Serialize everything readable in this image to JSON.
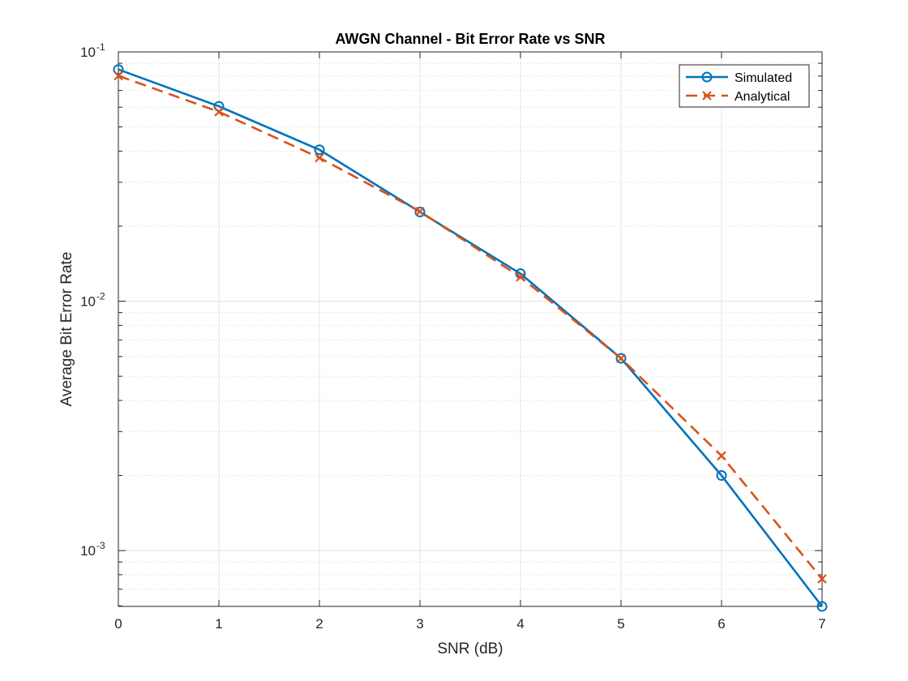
{
  "chart_data": {
    "type": "line",
    "title": "AWGN Channel - Bit Error Rate vs SNR",
    "xlabel": "SNR (dB)",
    "ylabel": "Average Bit Error Rate",
    "xlim": [
      0,
      7
    ],
    "ylim": [
      0.000597,
      0.1
    ],
    "yscale": "log",
    "grid": true,
    "legend_position": "top-right",
    "x": [
      0,
      1,
      2,
      3,
      4,
      5,
      6,
      7
    ],
    "xticks": [
      "0",
      "1",
      "2",
      "3",
      "4",
      "5",
      "6",
      "7"
    ],
    "yticks": [
      {
        "value": 0.001,
        "base": "10",
        "exp": "-3"
      },
      {
        "value": 0.01,
        "base": "10",
        "exp": "-2"
      },
      {
        "value": 0.1,
        "base": "10",
        "exp": "-1"
      }
    ],
    "series": [
      {
        "name": "Simulated",
        "color": "#0072BD",
        "marker": "circle",
        "line": "solid",
        "values": [
          0.085,
          0.0605,
          0.0405,
          0.0228,
          0.0129,
          0.0059,
          0.002,
          0.000597
        ]
      },
      {
        "name": "Analytical",
        "color": "#D95319",
        "marker": "x",
        "line": "dashed",
        "values": [
          0.0802,
          0.0575,
          0.0376,
          0.0229,
          0.0125,
          0.0059,
          0.0024,
          0.00077
        ]
      }
    ]
  }
}
